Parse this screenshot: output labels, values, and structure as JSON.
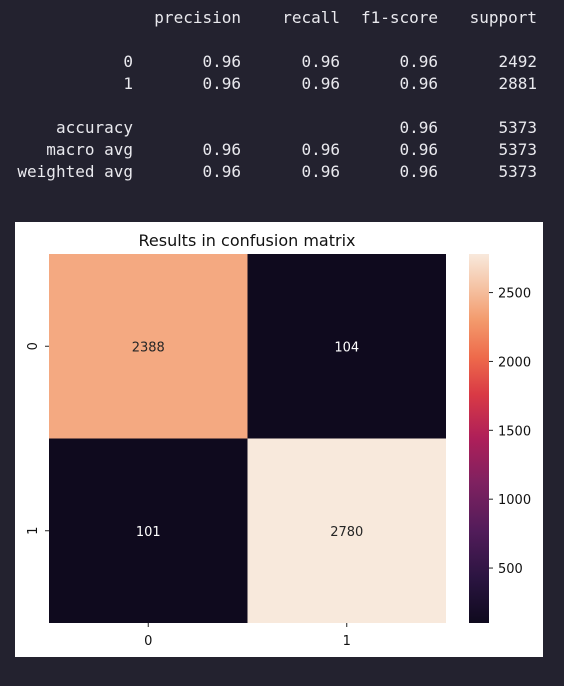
{
  "report": {
    "header": [
      "precision",
      "recall",
      "f1-score",
      "support"
    ],
    "class_rows": [
      {
        "label": "0",
        "precision": "0.96",
        "recall": "0.96",
        "f1": "0.96",
        "support": "2492"
      },
      {
        "label": "1",
        "precision": "0.96",
        "recall": "0.96",
        "f1": "0.96",
        "support": "2881"
      }
    ],
    "accuracy_row": {
      "label": "accuracy",
      "precision": "",
      "recall": "",
      "f1": "0.96",
      "support": "5373"
    },
    "avg_rows": [
      {
        "label": "macro avg",
        "precision": "0.96",
        "recall": "0.96",
        "f1": "0.96",
        "support": "5373"
      },
      {
        "label": "weighted avg",
        "precision": "0.96",
        "recall": "0.96",
        "f1": "0.96",
        "support": "5373"
      }
    ]
  },
  "chart_data": {
    "type": "heatmap",
    "title": "Results in confusion matrix",
    "xlabel": "",
    "ylabel": "",
    "x_tick_labels": [
      "0",
      "1"
    ],
    "y_tick_labels": [
      "0",
      "1"
    ],
    "values": [
      [
        2388,
        104
      ],
      [
        101,
        2780
      ]
    ],
    "colorbar": {
      "colormap": "rocket",
      "range": [
        101,
        2780
      ],
      "ticks": [
        500,
        1000,
        1500,
        2000,
        2500
      ],
      "tick_labels": [
        "500",
        "1000",
        "1500",
        "2000",
        "2500"
      ]
    },
    "colors": {
      "low": "#0f0a1e",
      "high": "#f8e9dc"
    }
  }
}
